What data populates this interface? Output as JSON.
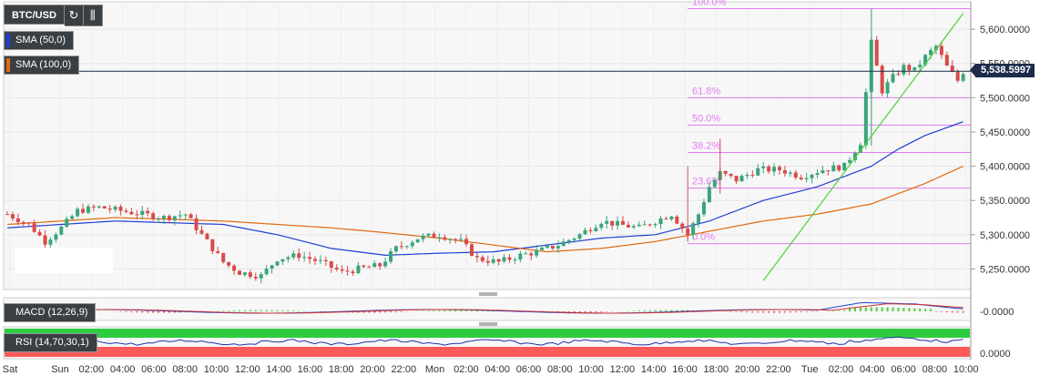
{
  "toolbar": {
    "symbol": "BTC/USD",
    "refresh_icon": "refresh-icon",
    "candles_icon": "candlestick-icon"
  },
  "indicators": {
    "sma50": {
      "label": "SMA (50,0)",
      "color": "#1f3fd1"
    },
    "sma100": {
      "label": "SMA (100,0)",
      "color": "#e06a10"
    },
    "macd": {
      "label": "MACD (12,26,9)"
    },
    "rsi": {
      "label": "RSI (14,70,30,1)"
    }
  },
  "current_price": "5,538.5997",
  "colors": {
    "up": "#3aa57a",
    "down": "#d94a4a",
    "fib": "#e17cf0",
    "trend": "#4cd137",
    "rsi_up": "#2ecc40",
    "rsi_down": "#ff5a5a"
  },
  "chart_data": [
    {
      "type": "candlestick",
      "title": "BTC/USD",
      "ylim": [
        5220,
        5640
      ],
      "y_ticks": [
        "5,250.0000",
        "5,300.0000",
        "5,350.0000",
        "5,400.0000",
        "5,450.0000",
        "5,500.0000",
        "5,550.0000",
        "5,600.0000"
      ],
      "y_tick_values": [
        5250,
        5300,
        5350,
        5400,
        5450,
        5500,
        5550,
        5600
      ],
      "x_ticks": [
        "Sat",
        "Sun",
        "02:00",
        "04:00",
        "06:00",
        "08:00",
        "10:00",
        "12:00",
        "14:00",
        "16:00",
        "18:00",
        "20:00",
        "22:00",
        "Mon",
        "02:00",
        "04:00",
        "06:00",
        "08:00",
        "10:00",
        "12:00",
        "14:00",
        "16:00",
        "18:00",
        "20:00",
        "22:00",
        "Tue",
        "02:00",
        "04:00",
        "06:00",
        "08:00",
        "10:00"
      ],
      "close_anchors": [
        [
          0,
          5330
        ],
        [
          4,
          5315
        ],
        [
          7,
          5290
        ],
        [
          10,
          5310
        ],
        [
          13,
          5335
        ],
        [
          17,
          5340
        ],
        [
          21,
          5335
        ],
        [
          25,
          5330
        ],
        [
          29,
          5325
        ],
        [
          33,
          5330
        ],
        [
          36,
          5300
        ],
        [
          40,
          5260
        ],
        [
          43,
          5245
        ],
        [
          47,
          5240
        ],
        [
          50,
          5265
        ],
        [
          54,
          5270
        ],
        [
          58,
          5260
        ],
        [
          62,
          5245
        ],
        [
          65,
          5250
        ],
        [
          69,
          5255
        ],
        [
          72,
          5280
        ],
        [
          76,
          5295
        ],
        [
          80,
          5300
        ],
        [
          84,
          5290
        ],
        [
          87,
          5265
        ],
        [
          91,
          5260
        ],
        [
          95,
          5270
        ],
        [
          98,
          5275
        ],
        [
          102,
          5285
        ],
        [
          106,
          5300
        ],
        [
          110,
          5320
        ],
        [
          113,
          5315
        ],
        [
          117,
          5310
        ],
        [
          120,
          5320
        ],
        [
          123,
          5330
        ],
        [
          126,
          5300
        ],
        [
          128,
          5330
        ],
        [
          130,
          5370
        ],
        [
          132,
          5390
        ],
        [
          135,
          5380
        ],
        [
          139,
          5395
        ],
        [
          143,
          5395
        ],
        [
          147,
          5385
        ],
        [
          151,
          5395
        ],
        [
          155,
          5400
        ],
        [
          158,
          5435
        ],
        [
          160,
          5580
        ],
        [
          162,
          5510
        ],
        [
          164,
          5530
        ],
        [
          166,
          5545
        ],
        [
          168,
          5540
        ],
        [
          170,
          5560
        ],
        [
          172,
          5575
        ],
        [
          174,
          5545
        ],
        [
          176,
          5525
        ],
        [
          177,
          5538
        ]
      ],
      "sma50_anchors": [
        [
          0,
          5310
        ],
        [
          20,
          5320
        ],
        [
          40,
          5315
        ],
        [
          50,
          5300
        ],
        [
          60,
          5280
        ],
        [
          70,
          5270
        ],
        [
          80,
          5273
        ],
        [
          90,
          5275
        ],
        [
          100,
          5285
        ],
        [
          110,
          5295
        ],
        [
          120,
          5300
        ],
        [
          130,
          5320
        ],
        [
          140,
          5350
        ],
        [
          150,
          5370
        ],
        [
          155,
          5385
        ],
        [
          160,
          5400
        ],
        [
          165,
          5425
        ],
        [
          170,
          5445
        ],
        [
          177,
          5465
        ]
      ],
      "sma100_anchors": [
        [
          0,
          5315
        ],
        [
          20,
          5325
        ],
        [
          40,
          5320
        ],
        [
          50,
          5315
        ],
        [
          60,
          5310
        ],
        [
          70,
          5303
        ],
        [
          80,
          5295
        ],
        [
          90,
          5285
        ],
        [
          100,
          5275
        ],
        [
          110,
          5280
        ],
        [
          120,
          5290
        ],
        [
          130,
          5305
        ],
        [
          140,
          5320
        ],
        [
          150,
          5330
        ],
        [
          160,
          5345
        ],
        [
          170,
          5375
        ],
        [
          177,
          5400
        ]
      ],
      "fibonacci": [
        {
          "label": "100.0%",
          "value": 5630
        },
        {
          "label": "61.8%",
          "value": 5500
        },
        {
          "label": "50.0%",
          "value": 5460
        },
        {
          "label": "38.2%",
          "value": 5420
        },
        {
          "label": "23.6%",
          "value": 5368
        },
        {
          "label": "0.0%",
          "value": 5287
        }
      ],
      "trendline": {
        "from": [
          140,
          5233
        ],
        "to": [
          177,
          5623
        ]
      },
      "current_price": 5538.5997
    },
    {
      "type": "line",
      "title": "MACD (12,26,9)",
      "y_ticks": [
        "-0.0000"
      ],
      "histogram": "green-above-red-below"
    },
    {
      "type": "line",
      "title": "RSI (14,70,30,1)",
      "y_ticks": [
        "0.0000"
      ]
    }
  ]
}
